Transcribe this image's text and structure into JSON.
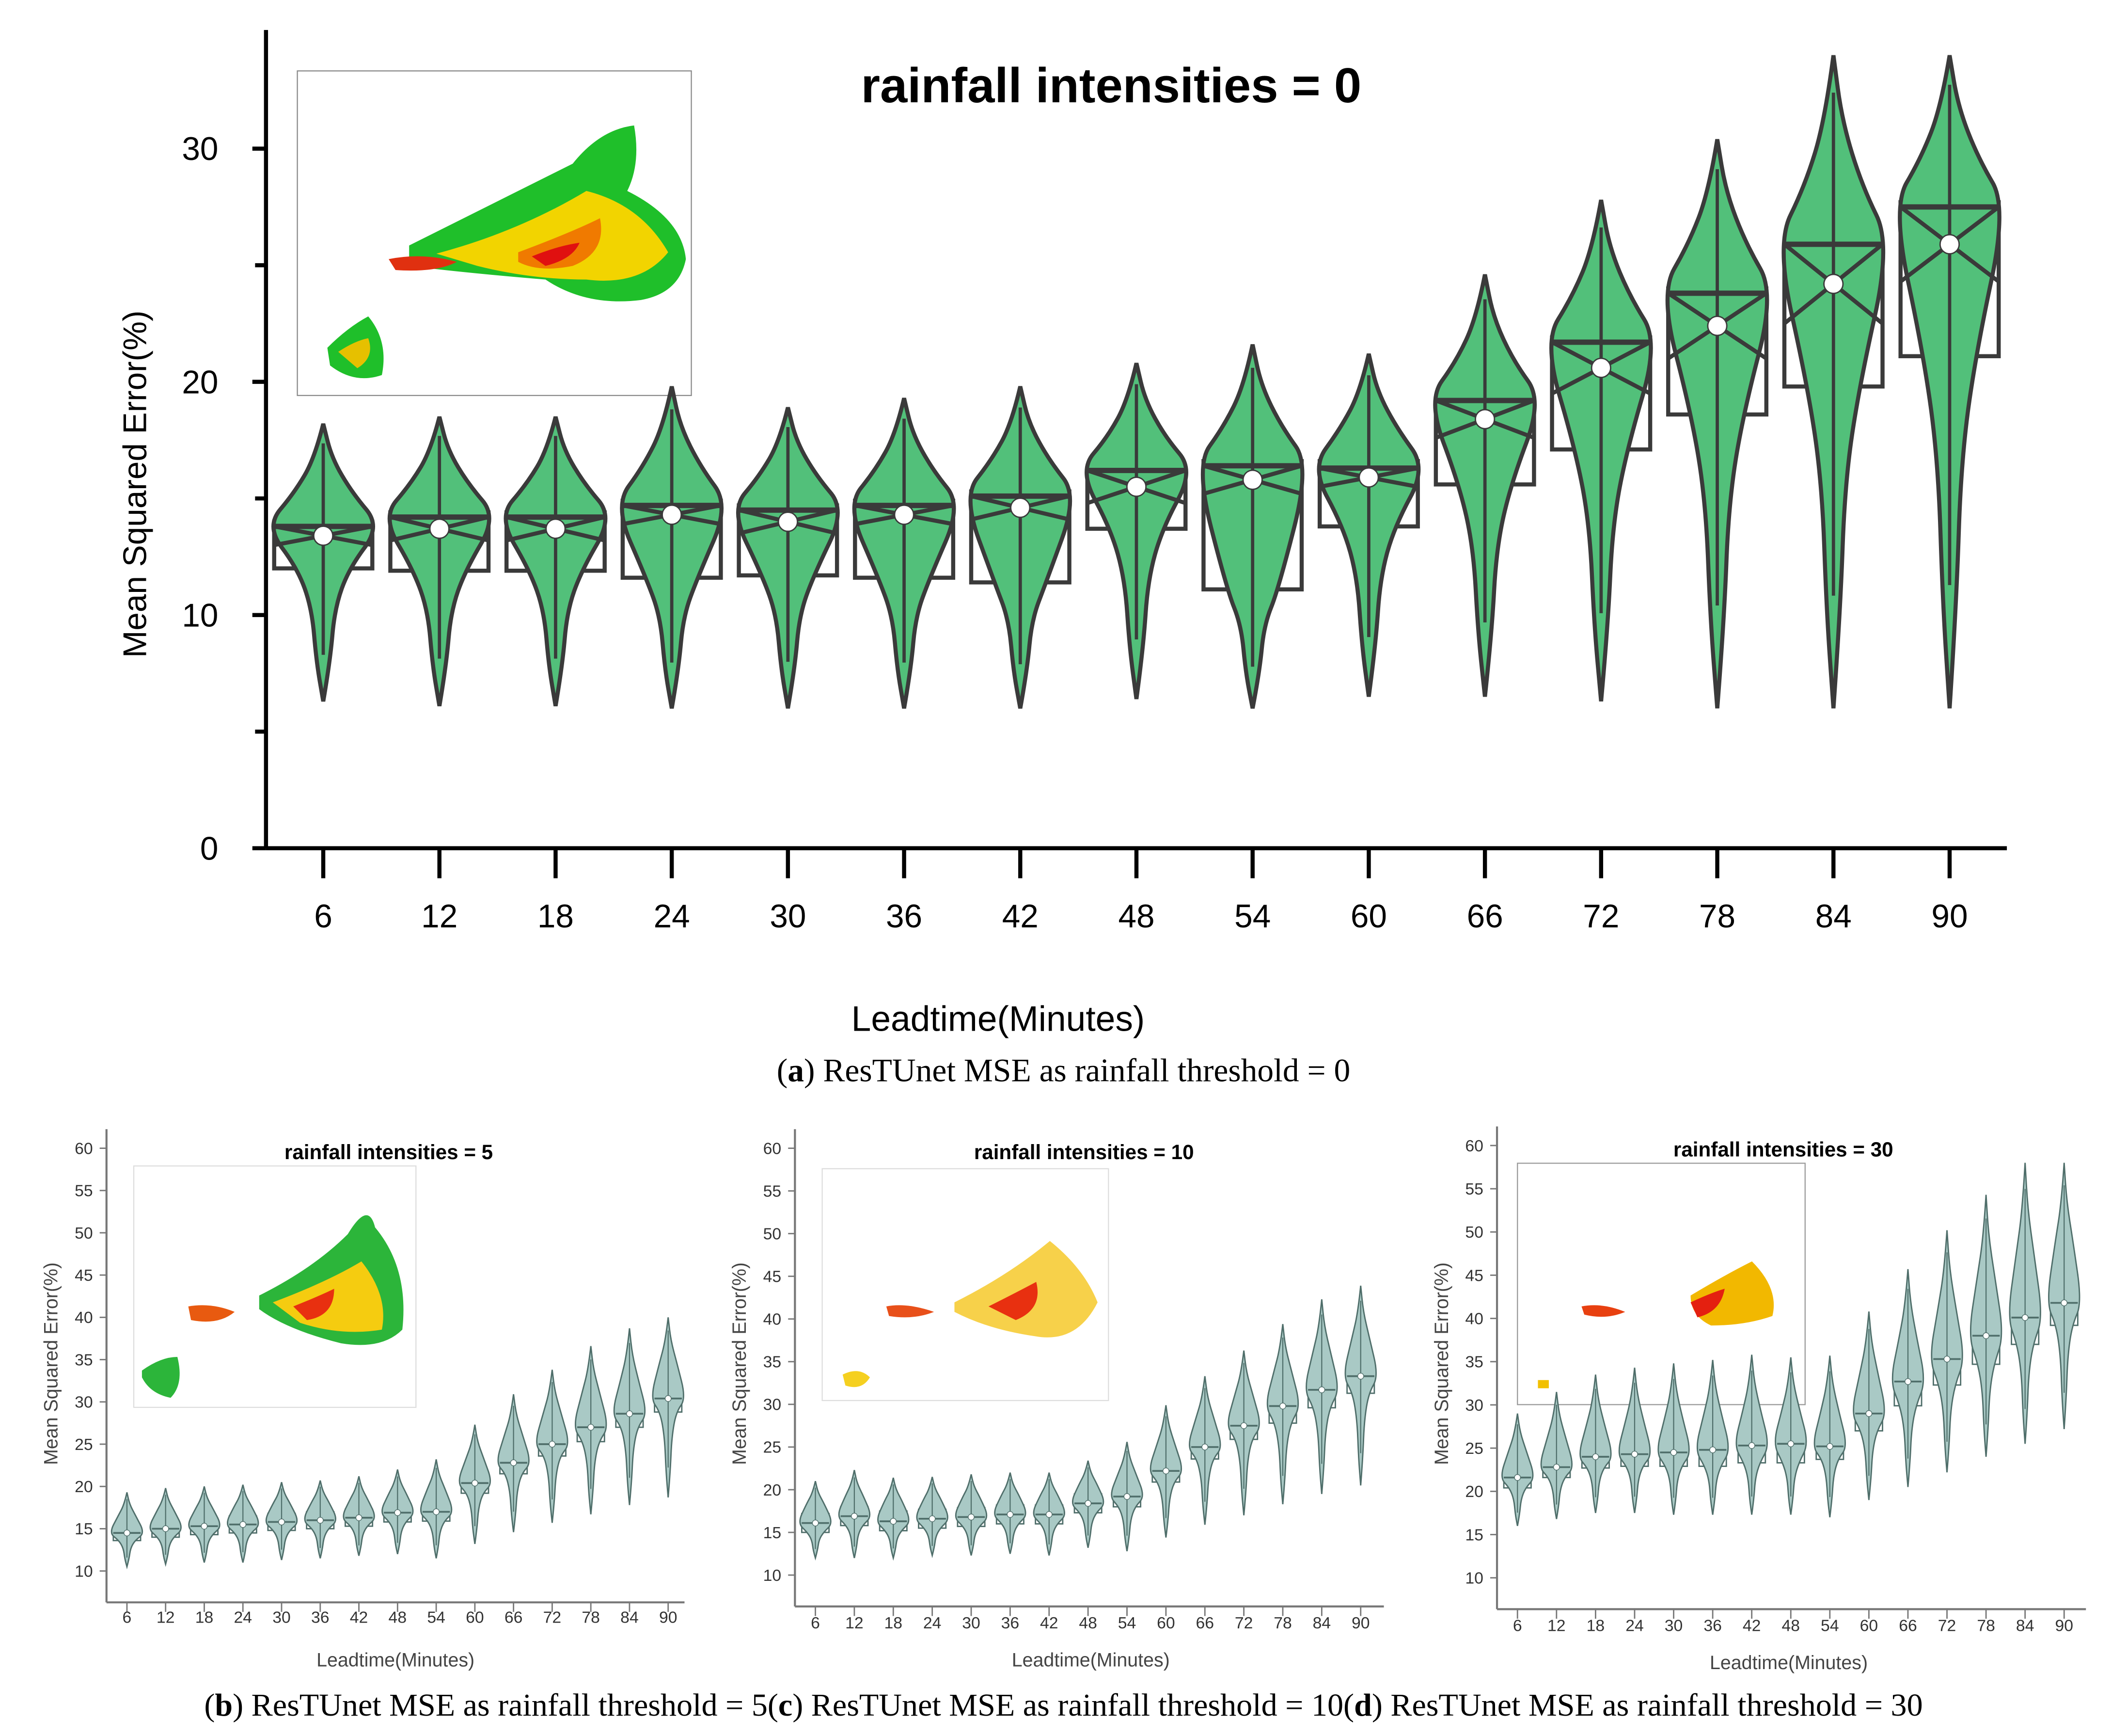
{
  "captions": {
    "a_letter": "a",
    "a_text": "ResTUnet MSE as rainfall threshold = 0",
    "b_letter": "b",
    "b_text": "ResTUnet MSE as rainfall threshold = 5",
    "c_letter": "c",
    "c_text": "ResTUnet MSE as rainfall threshold = 10",
    "d_letter": "d",
    "d_text": "ResTUnet MSE as rainfall threshold = 30"
  },
  "colors": {
    "main_fill": "#52c07a",
    "main_stroke": "#3a3a3a",
    "small_fill": "#a9c9c5",
    "small_stroke": "#4f6e6a"
  },
  "chart_data": [
    {
      "id": "a",
      "type": "violin",
      "title": "rainfall intensities = 0",
      "xlabel": "Leadtime(Minutes)",
      "ylabel": "Mean Squared Error(%)",
      "ylim": [
        0,
        35
      ],
      "yticks": [
        0,
        10,
        20,
        30
      ],
      "categories": [
        "6",
        "12",
        "18",
        "24",
        "30",
        "36",
        "42",
        "48",
        "54",
        "60",
        "66",
        "72",
        "78",
        "84",
        "90"
      ],
      "mean": [
        13.4,
        13.7,
        13.7,
        14.3,
        14.0,
        14.3,
        14.6,
        15.5,
        15.8,
        15.9,
        18.4,
        20.6,
        22.4,
        24.2,
        25.9
      ],
      "median": [
        13.8,
        14.2,
        14.2,
        14.7,
        14.5,
        14.7,
        15.1,
        16.2,
        16.4,
        16.3,
        19.2,
        21.7,
        23.8,
        25.9,
        27.5
      ],
      "q1": [
        12.0,
        11.9,
        11.9,
        11.6,
        11.7,
        11.6,
        11.4,
        13.7,
        11.1,
        13.8,
        15.6,
        17.1,
        18.6,
        19.8,
        21.1
      ],
      "q3": [
        14.0,
        14.4,
        14.4,
        14.9,
        14.7,
        14.9,
        15.3,
        16.3,
        16.6,
        16.6,
        19.3,
        21.9,
        24.0,
        26.0,
        27.7
      ],
      "min": [
        6.3,
        6.1,
        6.1,
        6.0,
        6.0,
        6.0,
        6.0,
        6.4,
        6.0,
        6.5,
        6.5,
        6.3,
        6.0,
        6.0,
        6.0
      ],
      "max": [
        18.2,
        18.5,
        18.5,
        19.8,
        18.9,
        19.3,
        19.8,
        20.8,
        21.6,
        21.2,
        24.6,
        27.8,
        30.4,
        34.0,
        34.0
      ]
    },
    {
      "id": "b",
      "type": "violin",
      "title": "rainfall intensities = 5",
      "xlabel": "Leadtime(Minutes)",
      "ylabel": "Mean Squared Error(%)",
      "ylim": [
        10,
        60
      ],
      "yticks": [
        10,
        15,
        20,
        25,
        30,
        35,
        40,
        45,
        50,
        55,
        60
      ],
      "categories": [
        "6",
        "12",
        "18",
        "24",
        "30",
        "36",
        "42",
        "48",
        "54",
        "60",
        "66",
        "72",
        "78",
        "84",
        "90"
      ],
      "mean": [
        14.5,
        15.0,
        15.3,
        15.5,
        15.8,
        16.0,
        16.3,
        16.9,
        17.0,
        20.4,
        22.8,
        25.0,
        27.0,
        28.6,
        30.4
      ],
      "q1": [
        13.6,
        14.0,
        14.3,
        14.5,
        14.8,
        15.0,
        15.3,
        15.8,
        15.9,
        19.2,
        21.5,
        23.6,
        25.3,
        27.0,
        28.8
      ],
      "q3": [
        15.3,
        15.9,
        16.2,
        16.5,
        16.8,
        17.0,
        17.3,
        17.9,
        18.2,
        21.6,
        24.1,
        26.5,
        28.7,
        30.0,
        32.2
      ],
      "min": [
        10.5,
        10.8,
        11.0,
        11.0,
        11.3,
        11.5,
        11.8,
        12.0,
        11.5,
        13.2,
        14.6,
        15.7,
        16.7,
        17.8,
        18.7
      ],
      "max": [
        19.3,
        19.8,
        20.0,
        20.2,
        20.5,
        20.7,
        21.2,
        22.0,
        23.2,
        27.3,
        30.9,
        33.8,
        36.6,
        38.7,
        40.0
      ]
    },
    {
      "id": "c",
      "type": "violin",
      "title": "rainfall intensities = 10",
      "xlabel": "Leadtime(Minutes)",
      "ylabel": "Mean Squared Error(%)",
      "ylim": [
        10,
        60
      ],
      "yticks": [
        10,
        15,
        20,
        25,
        30,
        35,
        40,
        45,
        50,
        55,
        60
      ],
      "categories": [
        "6",
        "12",
        "18",
        "24",
        "30",
        "36",
        "42",
        "48",
        "54",
        "60",
        "66",
        "72",
        "78",
        "84",
        "90"
      ],
      "mean": [
        16.1,
        16.9,
        16.3,
        16.6,
        16.8,
        17.1,
        17.1,
        18.4,
        19.2,
        22.2,
        25.0,
        27.5,
        29.8,
        31.7,
        33.3
      ],
      "q1": [
        15.0,
        15.8,
        15.2,
        15.5,
        15.7,
        16.0,
        16.0,
        17.3,
        18.0,
        20.9,
        23.6,
        25.9,
        27.8,
        29.6,
        31.3
      ],
      "q3": [
        17.2,
        18.0,
        17.5,
        17.7,
        17.9,
        18.2,
        18.2,
        19.5,
        20.3,
        23.4,
        26.3,
        29.0,
        31.5,
        33.4,
        35.1
      ],
      "min": [
        12.0,
        12.0,
        12.0,
        12.3,
        12.3,
        12.5,
        12.3,
        13.2,
        12.8,
        14.4,
        15.9,
        17.0,
        18.3,
        19.5,
        20.5
      ],
      "max": [
        21.0,
        22.3,
        21.4,
        21.5,
        21.8,
        22.0,
        22.0,
        23.4,
        25.6,
        29.9,
        33.3,
        36.3,
        39.4,
        42.3,
        43.9
      ]
    },
    {
      "id": "d",
      "type": "violin",
      "title": "rainfall intensities = 30",
      "xlabel": "Leadtime(Minutes)",
      "ylabel": "Mean Squared Error(%)",
      "ylim": [
        10,
        60
      ],
      "yticks": [
        10,
        15,
        20,
        25,
        30,
        35,
        40,
        45,
        50,
        55,
        60
      ],
      "categories": [
        "6",
        "12",
        "18",
        "24",
        "30",
        "36",
        "42",
        "48",
        "54",
        "60",
        "66",
        "72",
        "78",
        "84",
        "90"
      ],
      "mean": [
        21.6,
        22.8,
        24.0,
        24.3,
        24.5,
        24.8,
        25.3,
        25.5,
        25.2,
        29.0,
        32.7,
        35.3,
        38.0,
        40.1,
        41.8
      ],
      "q1": [
        20.4,
        21.6,
        22.7,
        22.9,
        22.9,
        22.9,
        23.3,
        23.3,
        23.7,
        27.0,
        29.9,
        32.3,
        34.7,
        37.0,
        39.2
      ],
      "q3": [
        22.8,
        24.1,
        25.3,
        25.6,
        25.8,
        26.2,
        26.6,
        26.8,
        26.6,
        30.7,
        34.3,
        37.4,
        40.6,
        42.9,
        45.0
      ],
      "min": [
        16.0,
        16.8,
        17.5,
        17.5,
        17.3,
        17.3,
        17.3,
        17.3,
        17.0,
        19.0,
        20.5,
        22.2,
        24.0,
        25.5,
        27.2
      ],
      "max": [
        29.0,
        31.5,
        33.5,
        34.3,
        34.8,
        35.2,
        35.8,
        35.5,
        35.7,
        40.8,
        45.7,
        50.2,
        54.3,
        58.0,
        58.0
      ]
    }
  ]
}
